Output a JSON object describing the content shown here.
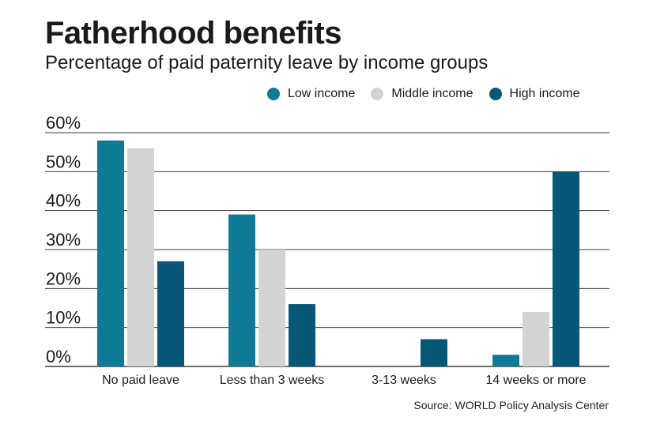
{
  "header": {
    "title": "Fatherhood benefits",
    "subtitle": "Percentage of paid paternity leave by income groups"
  },
  "source": "Source: WORLD Policy Analysis Center",
  "colors": {
    "low": "#0e7a96",
    "middle": "#d4d3d4",
    "high": "#075876",
    "grid": "#3a3a3a"
  },
  "chart_data": {
    "type": "bar",
    "title": "Fatherhood benefits",
    "subtitle": "Percentage of paid paternity leave by income groups",
    "categories": [
      "No paid leave",
      "Less than 3 weeks",
      "3-13 weeks",
      "14 weeks or more"
    ],
    "series": [
      {
        "name": "Low income",
        "values": [
          58,
          39,
          0,
          3
        ],
        "color": "#0e7a96"
      },
      {
        "name": "Middle income",
        "values": [
          56,
          30,
          0,
          14
        ],
        "color": "#d4d3d4"
      },
      {
        "name": "High income",
        "values": [
          27,
          16,
          7,
          50
        ],
        "color": "#075876"
      }
    ],
    "yticks": [
      "0%",
      "10%",
      "20%",
      "30%",
      "40%",
      "50%",
      "60%"
    ],
    "ylim": [
      0,
      60
    ],
    "grid": true,
    "legend": "top-right",
    "xlabel": "",
    "ylabel": ""
  }
}
